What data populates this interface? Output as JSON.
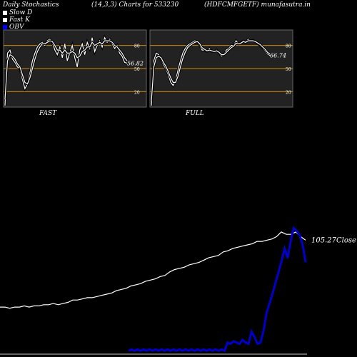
{
  "header": {
    "title": "Daily Stochastics",
    "params": "(14,3,3) Charts for 533230",
    "symbol": "(HDFCMFGETF) munafasutra.in"
  },
  "legend": [
    {
      "label": "Slow  D",
      "color": "#ffffff"
    },
    {
      "label": "Fast K",
      "color": "#ffffff"
    },
    {
      "label": "OBV",
      "color": "#0000ff"
    }
  ],
  "colors": {
    "background": "#000000",
    "panel": "#222222",
    "level": "#d08a00",
    "price": "#ffffff",
    "obv": "#0000cc"
  },
  "chart_data": [
    {
      "type": "line",
      "panel_label": "FAST",
      "levels": [
        80,
        50,
        20
      ],
      "ylim": [
        0,
        100
      ],
      "last_value_label": "56.82",
      "series": [
        {
          "name": "Fast K",
          "values": [
            2,
            70,
            74,
            62,
            58,
            52,
            50,
            36,
            24,
            30,
            44,
            60,
            70,
            78,
            82,
            84,
            80,
            86,
            88,
            84,
            74,
            68,
            78,
            64,
            82,
            60,
            70,
            80,
            64,
            52,
            74,
            82,
            68,
            84,
            76,
            90,
            72,
            80,
            86,
            78,
            90,
            84,
            88,
            82,
            76,
            80,
            70,
            66,
            58,
            57
          ]
        },
        {
          "name": "Slow D",
          "values": [
            10,
            60,
            68,
            66,
            62,
            56,
            52,
            42,
            32,
            30,
            38,
            50,
            62,
            72,
            78,
            82,
            82,
            84,
            86,
            85,
            80,
            74,
            74,
            70,
            74,
            70,
            70,
            72,
            70,
            64,
            66,
            72,
            74,
            78,
            78,
            84,
            80,
            82,
            84,
            82,
            86,
            86,
            86,
            84,
            80,
            78,
            74,
            70,
            64,
            60
          ]
        }
      ]
    },
    {
      "type": "line",
      "panel_label": "FULL",
      "levels": [
        80,
        50,
        20
      ],
      "ylim": [
        0,
        100
      ],
      "last_value_label": "66.74",
      "series": [
        {
          "name": "Fast K",
          "values": [
            2,
            60,
            70,
            68,
            62,
            55,
            50,
            42,
            32,
            28,
            34,
            48,
            60,
            70,
            76,
            80,
            82,
            84,
            86,
            85,
            80,
            74,
            74,
            72,
            76,
            72,
            72,
            74,
            70,
            66,
            68,
            74,
            76,
            80,
            80,
            86,
            82,
            84,
            86,
            84,
            88,
            86,
            87,
            85,
            82,
            80,
            77,
            73,
            69,
            67
          ]
        },
        {
          "name": "Slow D",
          "values": [
            8,
            52,
            64,
            66,
            64,
            58,
            53,
            46,
            38,
            32,
            32,
            40,
            52,
            63,
            71,
            77,
            80,
            82,
            84,
            85,
            82,
            77,
            75,
            73,
            74,
            73,
            72,
            73,
            71,
            68,
            68,
            71,
            74,
            77,
            79,
            83,
            82,
            83,
            85,
            84,
            86,
            86,
            86,
            85,
            83,
            81,
            78,
            75,
            71,
            69
          ]
        }
      ]
    },
    {
      "type": "line",
      "close_label": "105.27Close",
      "series": [
        {
          "name": "Close",
          "values": [
            48,
            48,
            47,
            48,
            48,
            49,
            48,
            49,
            49,
            50,
            50,
            51,
            50,
            51,
            52,
            54,
            54,
            55,
            56,
            56,
            57,
            58,
            59,
            60,
            62,
            63,
            64,
            66,
            67,
            68,
            70,
            71,
            72,
            74,
            75,
            78,
            80,
            81,
            82,
            84,
            85,
            86,
            88,
            90,
            91,
            92,
            95,
            96,
            98,
            99,
            100,
            101,
            102,
            104,
            104,
            105,
            106,
            108,
            112,
            110,
            110,
            112,
            108,
            105
          ]
        },
        {
          "name": "OBV",
          "values": [
            30,
            31,
            30,
            31,
            30,
            31,
            30,
            31,
            30,
            31,
            30,
            31,
            30,
            31,
            30,
            31,
            30,
            31,
            30,
            31,
            30,
            31,
            30,
            31,
            30,
            31,
            30,
            31,
            30,
            31,
            30,
            31,
            30,
            36,
            35,
            37,
            36,
            35,
            38,
            36,
            35,
            44,
            40,
            35,
            36,
            45,
            58,
            65,
            72,
            80,
            88,
            96,
            105,
            98,
            110,
            120,
            118,
            115,
            108,
            95
          ]
        }
      ]
    }
  ]
}
